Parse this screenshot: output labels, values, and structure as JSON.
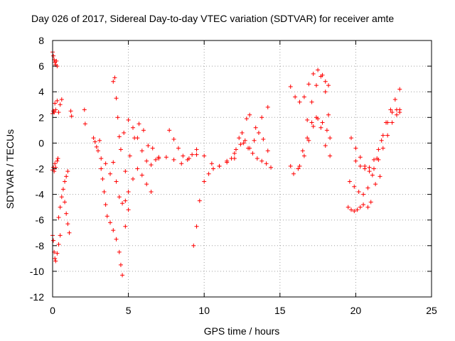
{
  "chart_data": {
    "type": "scatter",
    "title": "Day 026 of 2017, Sidereal Day-to-day VTEC variation (SDTVAR) for receiver amte",
    "xlabel": "GPS time / hours",
    "ylabel": "SDTVAR / TECUs",
    "xlim": [
      0,
      25
    ],
    "ylim": [
      -12,
      8
    ],
    "xticks": [
      "0",
      "5",
      "10",
      "15",
      "20",
      "25"
    ],
    "yticks": [
      "-12",
      "-10",
      "-8",
      "-6",
      "-4",
      "-2",
      "0",
      "2",
      "4",
      "6",
      "8"
    ],
    "grid": true,
    "marker": "plus",
    "marker_color": "#ff0000",
    "series": [
      {
        "x": [
          0.0,
          0.05,
          0.1,
          0.15,
          0.2,
          0.25,
          0.3
        ],
        "y": [
          7.1,
          6.8,
          6.5,
          6.3,
          6.1,
          6.4,
          6.0
        ]
      },
      {
        "x": [
          0.0,
          0.05,
          0.1,
          0.15,
          0.2,
          0.3,
          0.4,
          0.5,
          0.6
        ],
        "y": [
          2.3,
          2.5,
          2.4,
          3.1,
          2.6,
          3.3,
          2.4,
          3.0,
          3.4
        ]
      },
      {
        "x": [
          0.0,
          0.05,
          0.1,
          0.15,
          0.2,
          0.3,
          0.35
        ],
        "y": [
          -2.1,
          -1.9,
          -2.2,
          -1.6,
          -1.9,
          -1.4,
          -1.2
        ]
      },
      {
        "x": [
          0.0,
          0.05,
          0.1,
          0.15,
          0.2,
          0.3,
          0.4,
          0.5
        ],
        "y": [
          -7.2,
          -7.6,
          -8.5,
          -9.0,
          -9.2,
          -8.6,
          -7.9,
          -7.2
        ]
      },
      {
        "x": [
          0.4,
          0.5,
          0.6,
          0.7,
          0.8,
          0.9,
          1.0
        ],
        "y": [
          -5.8,
          -5.0,
          -4.2,
          -3.6,
          -3.0,
          -2.6,
          -2.2
        ]
      },
      {
        "x": [
          0.8,
          0.9,
          1.0,
          1.1
        ],
        "y": [
          -4.6,
          -5.5,
          -6.3,
          -7.0
        ]
      },
      {
        "x": [
          1.2,
          1.25,
          2.1,
          2.15
        ],
        "y": [
          2.5,
          2.1,
          2.6,
          1.5
        ]
      },
      {
        "x": [
          2.7,
          2.8,
          2.9,
          3.0,
          3.1
        ],
        "y": [
          0.4,
          0.1,
          -0.3,
          -0.6,
          0.2
        ]
      },
      {
        "x": [
          3.2,
          3.3,
          3.4,
          3.5,
          3.6,
          3.8,
          4.0,
          4.2,
          4.4,
          4.5,
          4.6,
          4.8,
          5.0
        ],
        "y": [
          -2.0,
          -2.8,
          -3.8,
          -4.8,
          -5.7,
          -6.2,
          -6.8,
          -7.5,
          -8.5,
          -9.5,
          -10.3,
          -6.5,
          -5.2
        ]
      },
      {
        "x": [
          3.2,
          3.5,
          3.8,
          4.0,
          4.2,
          4.4,
          4.6,
          4.8
        ],
        "y": [
          -1.2,
          -1.6,
          -2.4,
          -1.5,
          -3.0,
          -4.2,
          -4.7,
          -4.5
        ]
      },
      {
        "x": [
          4.0,
          4.1,
          4.2,
          4.3,
          4.4
        ],
        "y": [
          4.8,
          5.1,
          3.5,
          2.0,
          0.5
        ]
      },
      {
        "x": [
          4.5,
          4.7,
          5.0,
          5.3,
          5.6,
          5.9,
          6.2,
          6.5,
          6.8,
          7.0
        ],
        "y": [
          -0.5,
          0.8,
          1.8,
          1.2,
          0.4,
          -0.6,
          -1.4,
          -1.7,
          -1.3,
          -1.1
        ]
      },
      {
        "x": [
          4.8,
          5.1,
          5.4,
          5.7,
          6.0,
          6.3,
          6.6
        ],
        "y": [
          -2.2,
          -1.0,
          0.4,
          1.5,
          1.0,
          -0.2,
          -0.4
        ]
      },
      {
        "x": [
          5.0,
          5.3,
          5.6,
          5.9,
          6.2,
          6.5
        ],
        "y": [
          -3.8,
          -2.8,
          -2.0,
          -2.5,
          -3.2,
          -3.8
        ]
      },
      {
        "x": [
          7.0,
          7.5,
          8.0,
          8.5,
          9.0,
          9.5,
          10.0,
          10.5,
          11.0,
          11.5,
          12.0
        ],
        "y": [
          -1.2,
          -1.1,
          -1.3,
          -1.6,
          -1.2,
          -0.9,
          -1.0,
          -1.6,
          -1.8,
          -1.5,
          -1.2
        ]
      },
      {
        "x": [
          7.7,
          8.0,
          8.3,
          8.6,
          8.9,
          9.2,
          9.5
        ],
        "y": [
          1.0,
          0.3,
          -0.4,
          -1.0,
          -1.3,
          -0.9,
          -0.5
        ]
      },
      {
        "x": [
          9.3,
          9.5,
          9.7,
          10.0,
          10.3,
          10.6,
          11.0,
          11.5,
          12.0,
          12.5,
          12.8,
          13.0,
          13.4,
          13.8,
          14.2
        ],
        "y": [
          -8.0,
          -6.5,
          -4.5,
          -3.0,
          -2.4,
          -2.0,
          -1.8,
          -1.4,
          -0.8,
          0.8,
          1.9,
          2.2,
          1.2,
          2.0,
          2.8
        ]
      },
      {
        "x": [
          11.8,
          12.1,
          12.4,
          12.7,
          13.0,
          13.3,
          13.6,
          13.9,
          14.2
        ],
        "y": [
          -1.2,
          -0.5,
          -0.1,
          0.2,
          -0.4,
          0.2,
          0.8,
          0.3,
          -0.6
        ]
      },
      {
        "x": [
          12.3,
          12.6,
          12.9,
          13.2,
          13.5,
          13.8,
          14.1,
          14.4
        ],
        "y": [
          0.4,
          0.0,
          -0.4,
          -0.8,
          -1.2,
          -1.4,
          -1.6,
          -1.9
        ]
      },
      {
        "x": [
          15.7,
          16.0,
          16.3,
          16.6,
          16.9,
          17.2,
          17.5,
          17.8,
          18.0,
          18.2
        ],
        "y": [
          4.4,
          3.6,
          3.2,
          3.6,
          4.6,
          5.4,
          5.7,
          5.3,
          4.8,
          4.5
        ]
      },
      {
        "x": [
          15.7,
          15.9,
          16.2,
          16.5,
          16.8,
          17.1,
          17.4,
          17.7,
          18.0,
          18.3
        ],
        "y": [
          -1.8,
          -2.4,
          -2.0,
          -0.6,
          0.4,
          1.6,
          2.0,
          1.2,
          -0.2,
          -1.0
        ]
      },
      {
        "x": [
          16.3,
          16.6,
          16.9,
          17.2,
          17.5,
          17.8,
          18.1,
          18.3
        ],
        "y": [
          -1.8,
          -1.0,
          0.2,
          1.3,
          1.9,
          1.6,
          1.0,
          0.4
        ]
      },
      {
        "x": [
          16.8,
          17.1,
          17.4,
          17.7,
          18.0,
          18.2
        ],
        "y": [
          1.8,
          3.2,
          4.5,
          5.2,
          4.0,
          2.2
        ]
      },
      {
        "x": [
          19.7,
          20.0,
          20.3,
          20.6,
          20.9,
          21.2,
          21.5,
          21.8,
          22.1,
          22.4,
          22.7,
          22.9
        ],
        "y": [
          0.4,
          -0.4,
          -1.1,
          -1.8,
          -2.2,
          -2.0,
          -1.3,
          -0.4,
          0.6,
          1.6,
          2.6,
          2.6
        ]
      },
      {
        "x": [
          19.6,
          19.9,
          20.2,
          20.5,
          20.8,
          21.1,
          21.4,
          21.7,
          22.0,
          22.3,
          22.6,
          22.9
        ],
        "y": [
          -3.0,
          -3.4,
          -3.8,
          -4.0,
          -3.5,
          -2.5,
          -1.2,
          0.2,
          1.6,
          2.6,
          3.4,
          4.2
        ]
      },
      {
        "x": [
          20.0,
          20.3,
          20.6,
          20.9,
          21.2,
          21.5,
          21.8,
          22.1,
          22.4,
          22.7,
          22.9
        ],
        "y": [
          -1.4,
          -1.8,
          -2.0,
          -1.9,
          -1.3,
          -0.5,
          0.6,
          1.6,
          2.4,
          2.2,
          2.4
        ]
      },
      {
        "x": [
          19.5,
          19.7,
          19.9,
          20.1,
          20.3,
          20.5,
          20.8,
          21.0,
          21.3,
          21.6
        ],
        "y": [
          -5.0,
          -5.2,
          -5.3,
          -5.2,
          -5.0,
          -4.8,
          -5.0,
          -4.6,
          -3.2,
          -2.6
        ]
      }
    ]
  }
}
